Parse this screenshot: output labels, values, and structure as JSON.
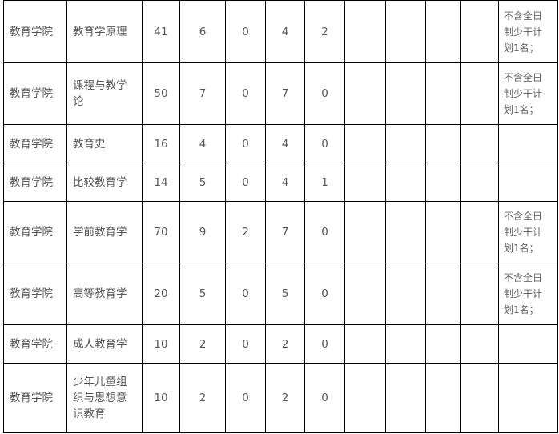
{
  "rows": [
    {
      "college": "教育学院",
      "major": "教育学原理",
      "v": [
        "41",
        "6",
        "0",
        "4",
        "2"
      ],
      "note": "不含全日制少干计划1名；"
    },
    {
      "college": "教育学院",
      "major": "课程与教学论",
      "v": [
        "50",
        "7",
        "0",
        "7",
        "0"
      ],
      "note": "不含全日制少干计划1名；"
    },
    {
      "college": "教育学院",
      "major": "教育史",
      "v": [
        "16",
        "4",
        "0",
        "4",
        "0"
      ],
      "note": ""
    },
    {
      "college": "教育学院",
      "major": "比较教育学",
      "v": [
        "14",
        "5",
        "0",
        "4",
        "1"
      ],
      "note": ""
    },
    {
      "college": "教育学院",
      "major": "学前教育学",
      "v": [
        "70",
        "9",
        "2",
        "7",
        "0"
      ],
      "note": "不含全日制少干计划1名；"
    },
    {
      "college": "教育学院",
      "major": "高等教育学",
      "v": [
        "20",
        "5",
        "0",
        "5",
        "0"
      ],
      "note": "不含全日制少干计划1名；"
    },
    {
      "college": "教育学院",
      "major": "成人教育学",
      "v": [
        "10",
        "2",
        "0",
        "2",
        "0"
      ],
      "note": ""
    },
    {
      "college": "教育学院",
      "major": "少年儿童组织与思想意识教育",
      "v": [
        "10",
        "2",
        "0",
        "2",
        "0"
      ],
      "note": ""
    }
  ]
}
